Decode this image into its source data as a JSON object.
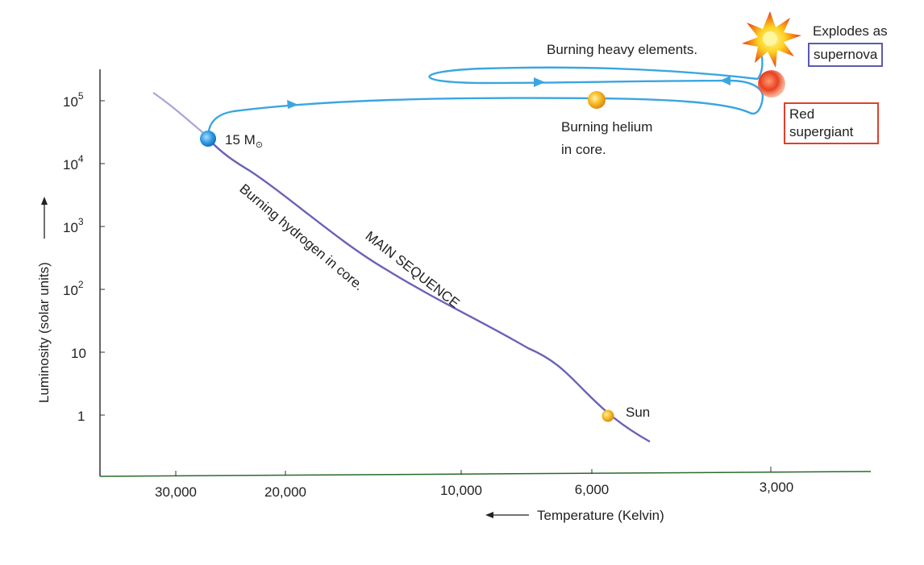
{
  "axes": {
    "y_label": "Luminosity (solar units)",
    "x_label": "Temperature (Kelvin)",
    "y_ticks": [
      {
        "base": "10",
        "exp": "5"
      },
      {
        "base": "10",
        "exp": "4"
      },
      {
        "base": "10",
        "exp": "3"
      },
      {
        "base": "10",
        "exp": "2"
      },
      {
        "base": "10",
        "exp": ""
      },
      {
        "base": "1",
        "exp": ""
      }
    ],
    "x_ticks": [
      "30,000",
      "20,000",
      "10,000",
      "6,000",
      "3,000"
    ]
  },
  "labels": {
    "mass_prefix": "15 M",
    "mass_symbol": "⊙",
    "sun": "Sun",
    "main_sequence": "MAIN SEQUENCE",
    "burning_hydrogen": "Burning hydrogen in core.",
    "burning_helium_1": "Burning helium",
    "burning_helium_2": "in core.",
    "burning_heavy": "Burning heavy elements.",
    "explodes": "Explodes as",
    "supernova": "supernova",
    "red_supergiant_1": "Red",
    "red_supergiant_2": "supergiant"
  },
  "colors": {
    "main_sequence_line": "#6a62b8",
    "track_line": "#3aa6e0",
    "blue_star": "#2f9be3",
    "sun": "#f0b020",
    "red_supergiant": "#e03a20",
    "supernova_box": "#5a5ab0",
    "red_box": "#e0402a"
  }
}
